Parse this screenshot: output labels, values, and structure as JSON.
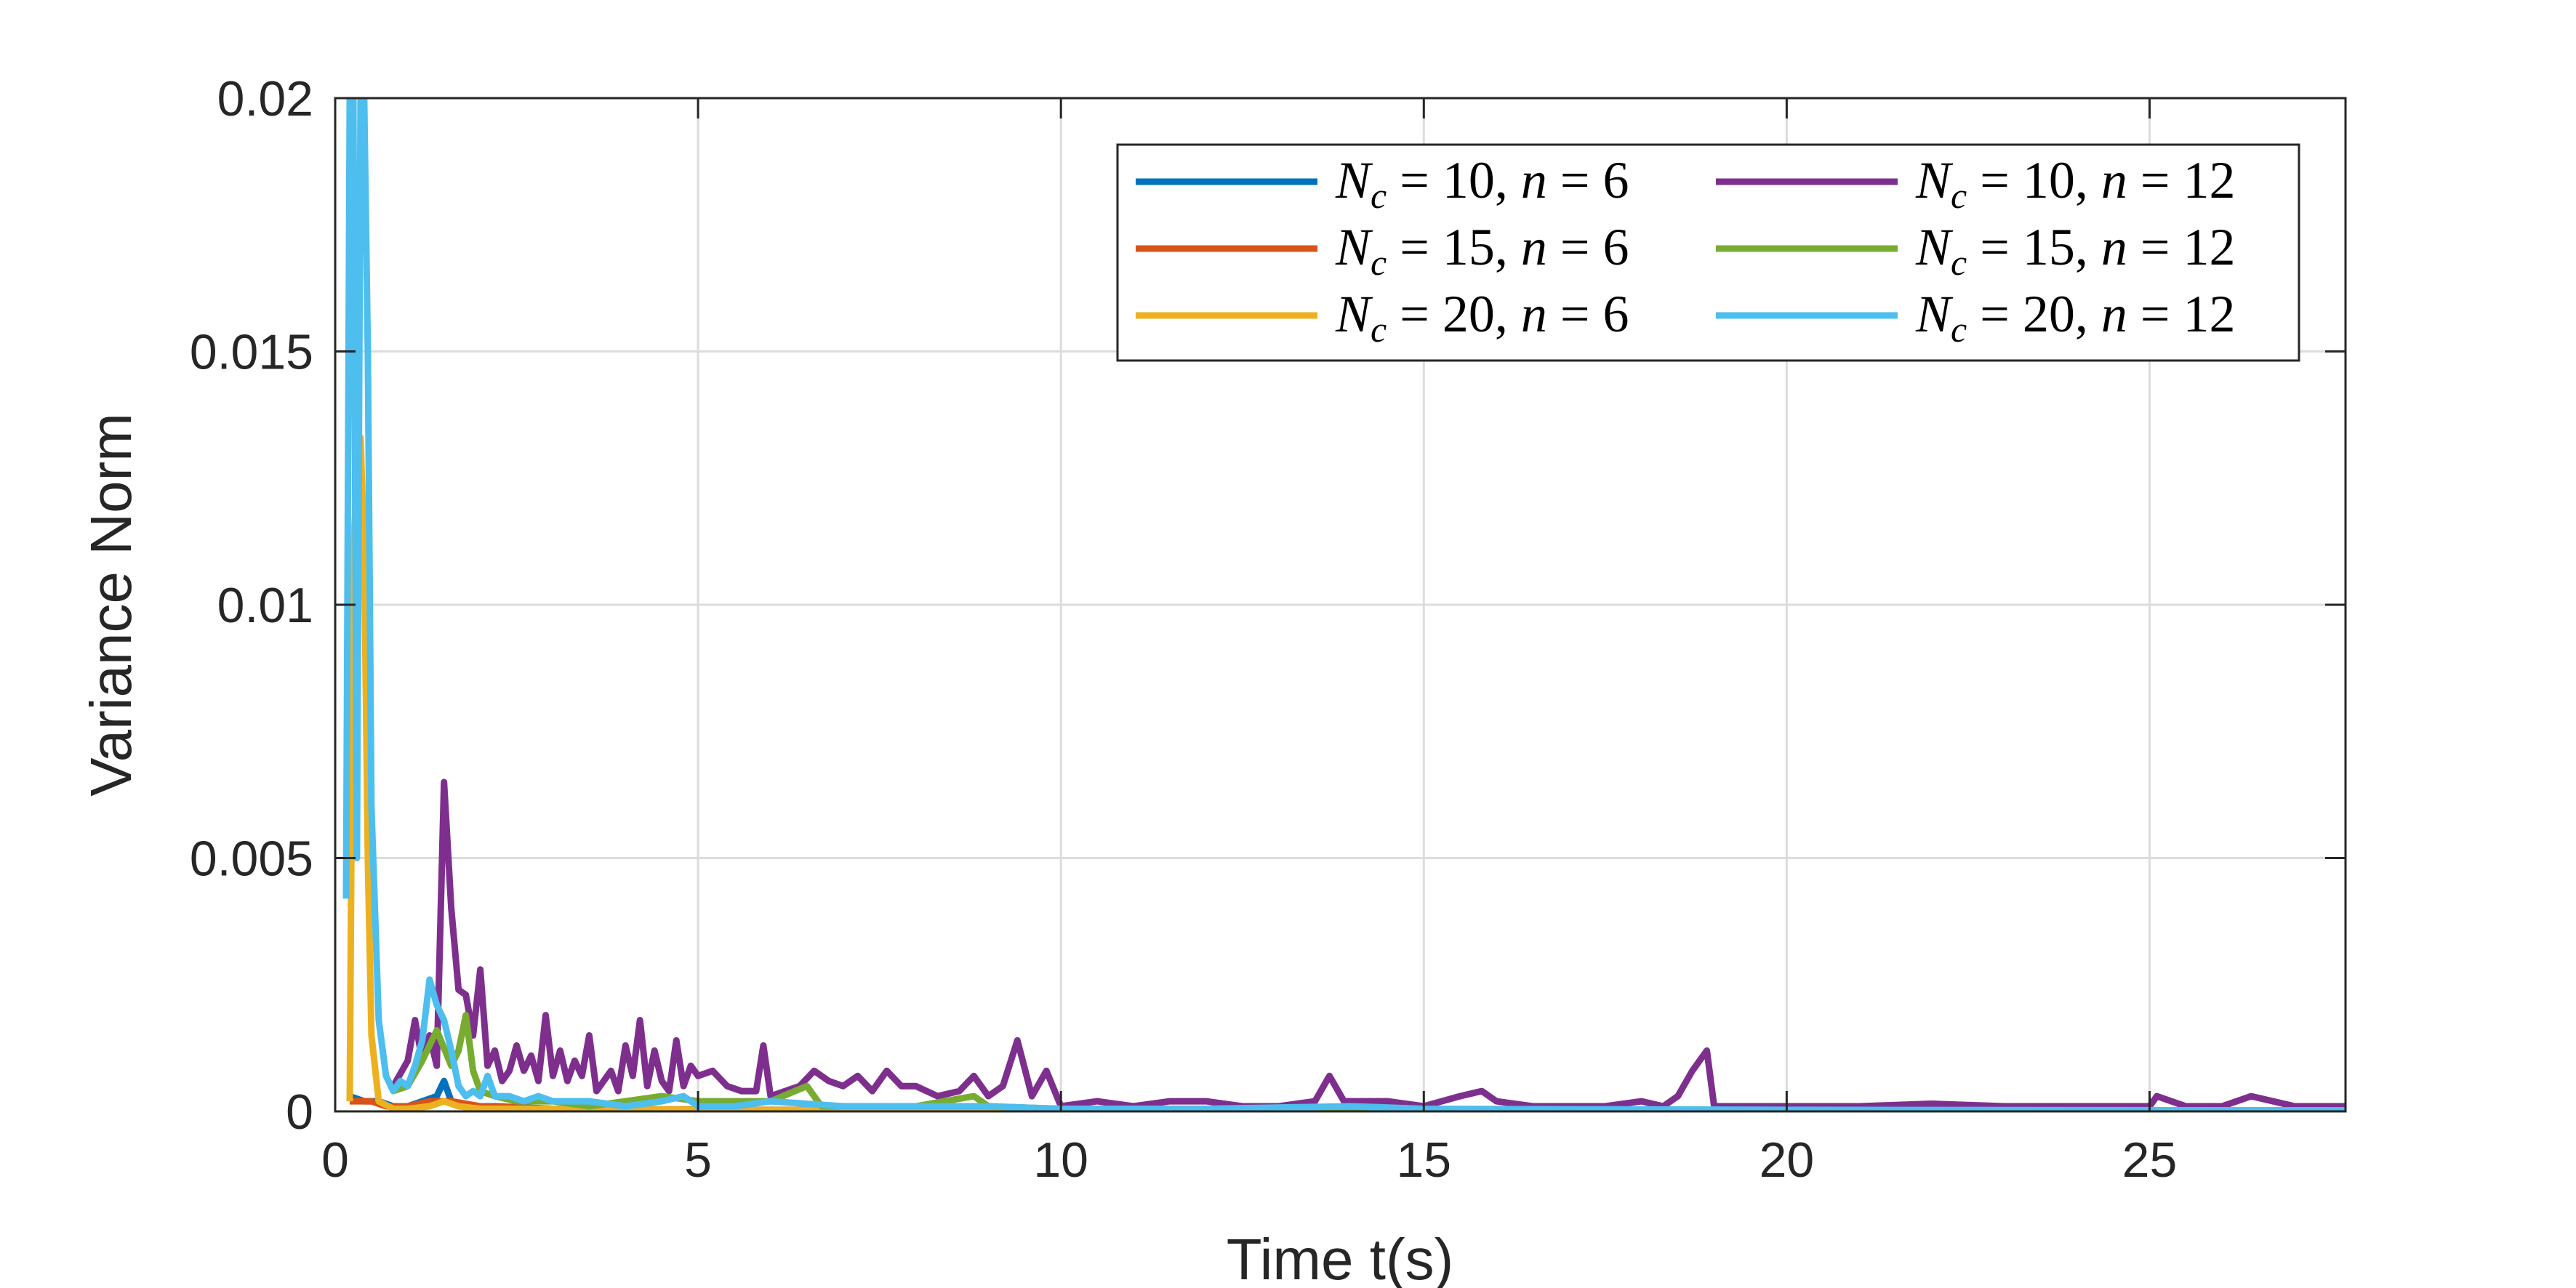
{
  "chart_data": {
    "type": "line",
    "title": "",
    "xlabel": "Time t(s)",
    "ylabel": "Variance Norm",
    "xlim": [
      0,
      27.7
    ],
    "ylim": [
      0,
      0.02
    ],
    "grid": true,
    "legend_position": "top-right",
    "x_ticks": [
      0,
      5,
      10,
      15,
      20,
      25
    ],
    "x_tick_labels": [
      "0",
      "5",
      "10",
      "15",
      "20",
      "25"
    ],
    "y_ticks": [
      0,
      0.005,
      0.01,
      0.015,
      0.02
    ],
    "y_tick_labels": [
      "0",
      "0.005",
      "0.01",
      "0.015",
      "0.02"
    ],
    "series": [
      {
        "name": "N_c = 10, n = 6",
        "Nc": "10",
        "n": "6",
        "color": "#0072BD",
        "points": [
          [
            0.2,
            0.0003
          ],
          [
            0.4,
            0.0002
          ],
          [
            0.6,
            0.0002
          ],
          [
            0.8,
            0.0001
          ],
          [
            1.0,
            0.0001
          ],
          [
            1.2,
            0.0002
          ],
          [
            1.4,
            0.0003
          ],
          [
            1.5,
            0.0006
          ],
          [
            1.6,
            0.0002
          ],
          [
            1.8,
            0.0001
          ],
          [
            2.2,
            0.0001
          ],
          [
            3.0,
            5e-05
          ],
          [
            5.0,
            3e-05
          ],
          [
            10,
            2e-05
          ],
          [
            20,
            1e-05
          ],
          [
            27.7,
            1e-05
          ]
        ]
      },
      {
        "name": "N_c = 15, n = 6",
        "Nc": "15",
        "n": "6",
        "color": "#D95319",
        "points": [
          [
            0.2,
            0.0002
          ],
          [
            0.5,
            0.0002
          ],
          [
            0.7,
            0.0001
          ],
          [
            1.0,
            0.0001
          ],
          [
            1.3,
            0.0002
          ],
          [
            1.6,
            0.0002
          ],
          [
            2.0,
            0.0001
          ],
          [
            3.0,
            5e-05
          ],
          [
            6.0,
            3e-05
          ],
          [
            12,
            2e-05
          ],
          [
            27.7,
            1e-05
          ]
        ]
      },
      {
        "name": "N_c = 20, n = 6",
        "Nc": "20",
        "n": "6",
        "color": "#EDB120",
        "points": [
          [
            0.2,
            0.0002
          ],
          [
            0.25,
            0.011
          ],
          [
            0.3,
            0.0127
          ],
          [
            0.35,
            0.0133
          ],
          [
            0.4,
            0.011
          ],
          [
            0.45,
            0.005
          ],
          [
            0.5,
            0.0015
          ],
          [
            0.6,
            0.0002
          ],
          [
            0.8,
            5e-05
          ],
          [
            1.0,
            5e-05
          ],
          [
            1.3,
            0.0001
          ],
          [
            1.5,
            0.0002
          ],
          [
            1.7,
            0.0001
          ],
          [
            2.0,
            5e-05
          ],
          [
            3.0,
            5e-05
          ],
          [
            5.0,
            3e-05
          ],
          [
            8.0,
            2e-05
          ],
          [
            15,
            1e-05
          ],
          [
            27.7,
            1e-05
          ]
        ]
      },
      {
        "name": "N_c = 10, n = 12",
        "Nc": "10",
        "n": "12",
        "color": "#7E2F8E",
        "points": [
          [
            0.8,
            0.0005
          ],
          [
            1.0,
            0.001
          ],
          [
            1.1,
            0.0018
          ],
          [
            1.2,
            0.001
          ],
          [
            1.3,
            0.0015
          ],
          [
            1.4,
            0.0009
          ],
          [
            1.5,
            0.0065
          ],
          [
            1.6,
            0.004
          ],
          [
            1.7,
            0.0024
          ],
          [
            1.8,
            0.0023
          ],
          [
            1.9,
            0.0015
          ],
          [
            2.0,
            0.0028
          ],
          [
            2.1,
            0.0009
          ],
          [
            2.2,
            0.0012
          ],
          [
            2.3,
            0.0006
          ],
          [
            2.4,
            0.0008
          ],
          [
            2.5,
            0.0013
          ],
          [
            2.6,
            0.0008
          ],
          [
            2.7,
            0.0011
          ],
          [
            2.8,
            0.0006
          ],
          [
            2.9,
            0.0019
          ],
          [
            3.0,
            0.0007
          ],
          [
            3.1,
            0.0012
          ],
          [
            3.2,
            0.0006
          ],
          [
            3.3,
            0.001
          ],
          [
            3.4,
            0.0007
          ],
          [
            3.5,
            0.0015
          ],
          [
            3.6,
            0.0004
          ],
          [
            3.7,
            0.0006
          ],
          [
            3.8,
            0.0008
          ],
          [
            3.9,
            0.0004
          ],
          [
            4.0,
            0.0013
          ],
          [
            4.1,
            0.0007
          ],
          [
            4.2,
            0.0018
          ],
          [
            4.3,
            0.0005
          ],
          [
            4.4,
            0.0012
          ],
          [
            4.5,
            0.0006
          ],
          [
            4.6,
            0.0004
          ],
          [
            4.7,
            0.0014
          ],
          [
            4.8,
            0.0005
          ],
          [
            4.9,
            0.0009
          ],
          [
            5.0,
            0.0007
          ],
          [
            5.2,
            0.0008
          ],
          [
            5.4,
            0.0005
          ],
          [
            5.6,
            0.0004
          ],
          [
            5.8,
            0.0004
          ],
          [
            5.9,
            0.0013
          ],
          [
            6.0,
            0.0003
          ],
          [
            6.2,
            0.0004
          ],
          [
            6.4,
            0.0005
          ],
          [
            6.6,
            0.0008
          ],
          [
            6.8,
            0.0006
          ],
          [
            7.0,
            0.0005
          ],
          [
            7.2,
            0.0007
          ],
          [
            7.4,
            0.0004
          ],
          [
            7.6,
            0.0008
          ],
          [
            7.8,
            0.0005
          ],
          [
            8.0,
            0.0005
          ],
          [
            8.3,
            0.0003
          ],
          [
            8.6,
            0.0004
          ],
          [
            8.8,
            0.0007
          ],
          [
            9.0,
            0.0003
          ],
          [
            9.2,
            0.0005
          ],
          [
            9.4,
            0.0014
          ],
          [
            9.6,
            0.0003
          ],
          [
            9.8,
            0.0008
          ],
          [
            10.0,
            0.0001
          ],
          [
            10.5,
            0.0002
          ],
          [
            11.0,
            0.0001
          ],
          [
            11.5,
            0.0002
          ],
          [
            12.0,
            0.0002
          ],
          [
            12.5,
            0.0001
          ],
          [
            13.0,
            0.0001
          ],
          [
            13.5,
            0.0002
          ],
          [
            13.7,
            0.0007
          ],
          [
            13.9,
            0.0002
          ],
          [
            14.5,
            0.0002
          ],
          [
            15.0,
            0.0001
          ],
          [
            15.5,
            0.0003
          ],
          [
            15.8,
            0.0004
          ],
          [
            16.0,
            0.0002
          ],
          [
            16.5,
            0.0001
          ],
          [
            17.0,
            0.0001
          ],
          [
            17.5,
            0.0001
          ],
          [
            18.0,
            0.0002
          ],
          [
            18.3,
            0.0001
          ],
          [
            18.5,
            0.0003
          ],
          [
            18.7,
            0.0008
          ],
          [
            18.9,
            0.0012
          ],
          [
            19.0,
            0.0001
          ],
          [
            19.5,
            0.0001
          ],
          [
            20,
            0.0001
          ],
          [
            21,
            0.0001
          ],
          [
            22,
            0.00015
          ],
          [
            23,
            0.0001
          ],
          [
            24,
            0.0001
          ],
          [
            25,
            0.0001
          ],
          [
            25.1,
            0.0003
          ],
          [
            25.5,
            0.0001
          ],
          [
            26,
            0.0001
          ],
          [
            26.4,
            0.0003
          ],
          [
            27,
            0.0001
          ],
          [
            27.7,
            0.0001
          ]
        ]
      },
      {
        "name": "N_c = 15, n = 12",
        "Nc": "15",
        "n": "12",
        "color": "#77AC30",
        "points": [
          [
            0.8,
            0.0004
          ],
          [
            1.0,
            0.0005
          ],
          [
            1.2,
            0.001
          ],
          [
            1.4,
            0.0016
          ],
          [
            1.6,
            0.0009
          ],
          [
            1.7,
            0.0012
          ],
          [
            1.8,
            0.0019
          ],
          [
            1.9,
            0.0008
          ],
          [
            2.0,
            0.0004
          ],
          [
            2.2,
            0.0003
          ],
          [
            2.5,
            0.0002
          ],
          [
            3.0,
            0.0002
          ],
          [
            3.5,
            0.0001
          ],
          [
            4.0,
            0.0002
          ],
          [
            4.5,
            0.0003
          ],
          [
            5.0,
            0.0002
          ],
          [
            5.5,
            0.0002
          ],
          [
            6.0,
            0.0002
          ],
          [
            6.5,
            0.0005
          ],
          [
            6.7,
            0.0001
          ],
          [
            7.0,
            0.0001
          ],
          [
            8.0,
            0.0001
          ],
          [
            8.8,
            0.0003
          ],
          [
            9.0,
            0.0001
          ],
          [
            10,
            5e-05
          ],
          [
            12,
            5e-05
          ],
          [
            15,
            3e-05
          ],
          [
            20,
            2e-05
          ],
          [
            27.7,
            2e-05
          ]
        ]
      },
      {
        "name": "N_c = 20, n = 12",
        "Nc": "20",
        "n": "12",
        "color": "#4DBEEE",
        "points": [
          [
            0.15,
            0.0042
          ],
          [
            0.2,
            0.02
          ],
          [
            0.25,
            0.02
          ],
          [
            0.3,
            0.005
          ],
          [
            0.35,
            0.02
          ],
          [
            0.4,
            0.02
          ],
          [
            0.45,
            0.015
          ],
          [
            0.5,
            0.006
          ],
          [
            0.6,
            0.0018
          ],
          [
            0.7,
            0.0007
          ],
          [
            0.8,
            0.0004
          ],
          [
            0.9,
            0.0006
          ],
          [
            1.0,
            0.0005
          ],
          [
            1.1,
            0.0009
          ],
          [
            1.2,
            0.0014
          ],
          [
            1.3,
            0.0026
          ],
          [
            1.4,
            0.0021
          ],
          [
            1.5,
            0.0018
          ],
          [
            1.6,
            0.0012
          ],
          [
            1.7,
            0.0005
          ],
          [
            1.8,
            0.0003
          ],
          [
            1.9,
            0.0004
          ],
          [
            2.0,
            0.0003
          ],
          [
            2.1,
            0.0007
          ],
          [
            2.2,
            0.0003
          ],
          [
            2.4,
            0.0003
          ],
          [
            2.6,
            0.0002
          ],
          [
            2.8,
            0.0003
          ],
          [
            3.0,
            0.0002
          ],
          [
            3.5,
            0.0002
          ],
          [
            4.0,
            0.0001
          ],
          [
            4.5,
            0.0002
          ],
          [
            4.8,
            0.0003
          ],
          [
            5.0,
            0.0001
          ],
          [
            5.5,
            0.0001
          ],
          [
            6.0,
            0.0002
          ],
          [
            7.0,
            0.0001
          ],
          [
            8.0,
            0.0001
          ],
          [
            9.0,
            0.0001
          ],
          [
            10.0,
            5e-05
          ],
          [
            12,
            5e-05
          ],
          [
            14,
            0.0001
          ],
          [
            15,
            5e-05
          ],
          [
            20,
            3e-05
          ],
          [
            27.7,
            2e-05
          ]
        ]
      }
    ]
  }
}
